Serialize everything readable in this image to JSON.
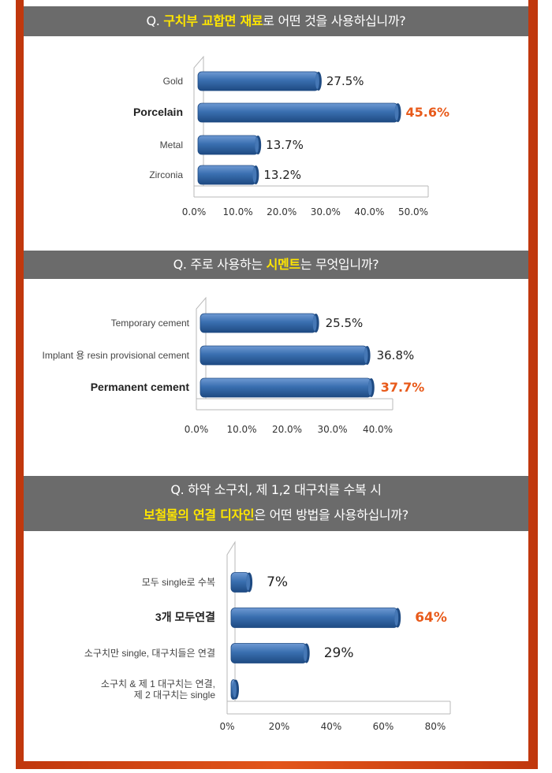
{
  "colors": {
    "bar": "#3a6fb0",
    "bar_dark": "#1e4a82",
    "bar_light": "#6f9ad3",
    "highlight": "#e85a1a",
    "question_bg": "#6b6b6b",
    "question_highlight": "#ffe600",
    "frame": "#d4420f"
  },
  "questions": [
    {
      "prefix": "Q. ",
      "highlight": "구치부 교합면 재료",
      "suffix": "로 어떤 것을 사용하십니까?"
    },
    {
      "prefix": "Q. 주로 사용하는 ",
      "highlight": "시멘트",
      "suffix": "는 무엇입니까?"
    },
    {
      "line1": "Q. 하악 소구치, 제 1,2 대구치를 수복 시",
      "highlight": "보철물의 연결 디자인",
      "suffix": "은 어떤 방법을 사용하십니까?"
    }
  ],
  "chart_data": [
    {
      "type": "bar",
      "orientation": "horizontal",
      "categories": [
        "Gold",
        "Porcelain",
        "Metal",
        "Zirconia"
      ],
      "values": [
        27.5,
        45.6,
        13.7,
        13.2
      ],
      "value_labels": [
        "27.5%",
        "45.6%",
        "13.7%",
        "13.2%"
      ],
      "highlight_index": 1,
      "xlim": [
        0,
        50
      ],
      "x_ticks": [
        "0.0%",
        "10.0%",
        "20.0%",
        "30.0%",
        "40.0%",
        "50.0%"
      ],
      "grid": false
    },
    {
      "type": "bar",
      "orientation": "horizontal",
      "categories": [
        "Temporary cement",
        "Implant 용 resin provisional cement",
        "Permanent cement"
      ],
      "values": [
        25.5,
        36.8,
        37.7
      ],
      "value_labels": [
        "25.5%",
        "36.8%",
        "37.7%"
      ],
      "highlight_index": 2,
      "xlim": [
        0,
        40
      ],
      "x_ticks": [
        "0.0%",
        "10.0%",
        "20.0%",
        "30.0%",
        "40.0%"
      ],
      "grid": false
    },
    {
      "type": "bar",
      "orientation": "horizontal",
      "categories": [
        "모두 single로 수복",
        "3개 모두연결",
        "소구치만 single, 대구치들은 연결",
        "소구치 & 제 1 대구치는 연결,\n제 2 대구치는 single"
      ],
      "values": [
        7,
        64,
        29,
        0
      ],
      "value_labels": [
        "7%",
        "64%",
        "29%",
        ""
      ],
      "highlight_index": 1,
      "xlim": [
        0,
        80
      ],
      "x_ticks": [
        "0%",
        "20%",
        "40%",
        "60%",
        "80%"
      ],
      "grid": false
    }
  ]
}
